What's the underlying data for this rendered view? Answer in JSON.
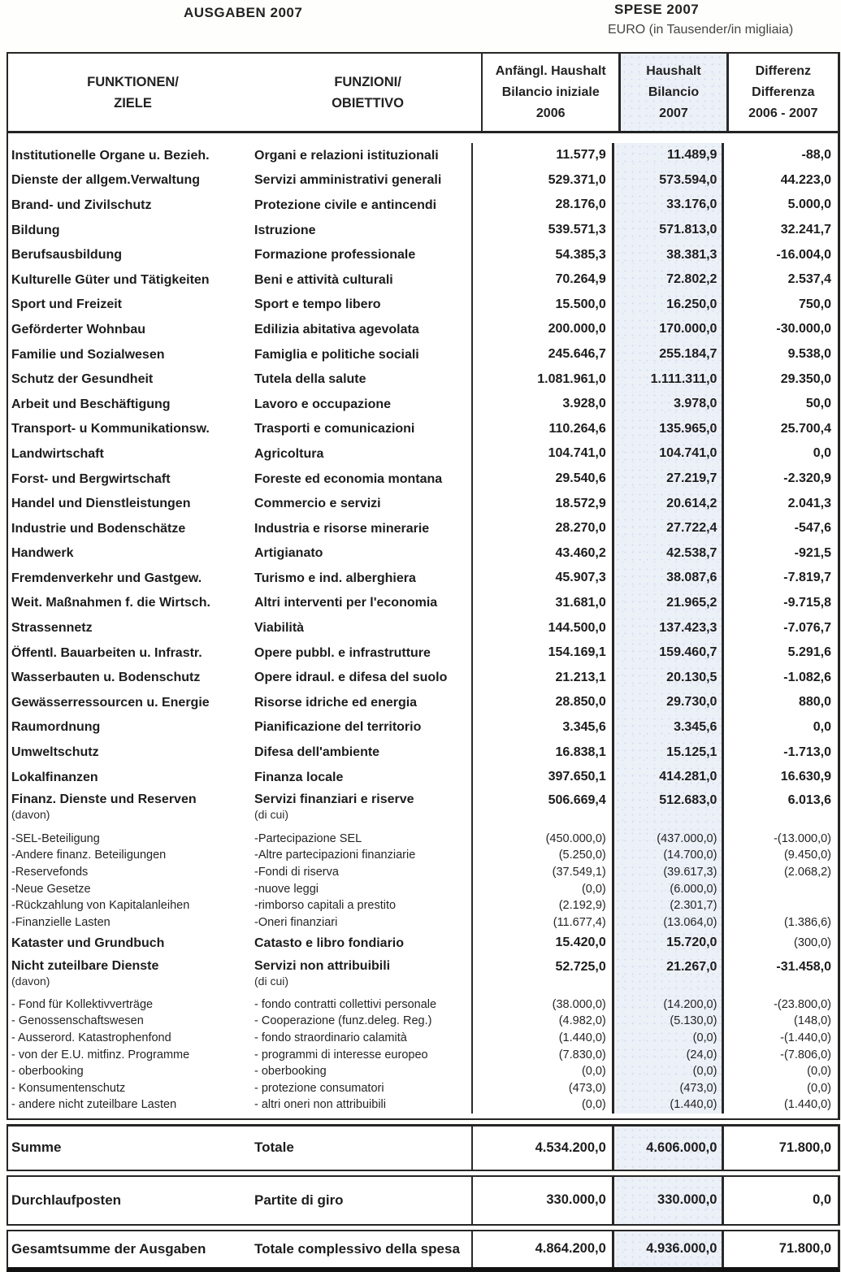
{
  "page": {
    "title_de": "AUSGABEN 2007",
    "title_it": "SPESE 2007",
    "unit_note": "EURO (in Tausender/in migliaia)"
  },
  "table": {
    "header": {
      "functions_de": [
        "FUNKTIONEN/",
        "ZIELE"
      ],
      "functions_it": [
        "FUNZIONI/",
        "OBIETTIVO"
      ],
      "col_2006": [
        "Anfängl. Haushalt",
        "Bilancio iniziale",
        "2006"
      ],
      "col_2007": [
        "Haushalt",
        "Bilancio",
        "2007"
      ],
      "col_diff": [
        "Differenz",
        "Differenza",
        "2006 - 2007"
      ]
    },
    "rows": [
      {
        "type": "main",
        "de": "Institutionelle Organe u. Bezieh.",
        "it": "Organi e relazioni istituzionali",
        "v2006": "11.577,9",
        "v2007": "11.489,9",
        "diff": "-88,0"
      },
      {
        "type": "main",
        "de": "Dienste der allgem.Verwaltung",
        "it": "Servizi amministrativi generali",
        "v2006": "529.371,0",
        "v2007": "573.594,0",
        "diff": "44.223,0"
      },
      {
        "type": "main",
        "de": "Brand- und Zivilschutz",
        "it": "Protezione civile e antincendi",
        "v2006": "28.176,0",
        "v2007": "33.176,0",
        "diff": "5.000,0"
      },
      {
        "type": "main",
        "de": "Bildung",
        "it": "Istruzione",
        "v2006": "539.571,3",
        "v2007": "571.813,0",
        "diff": "32.241,7"
      },
      {
        "type": "main",
        "de": "Berufsausbildung",
        "it": "Formazione professionale",
        "v2006": "54.385,3",
        "v2007": "38.381,3",
        "diff": "-16.004,0"
      },
      {
        "type": "main",
        "de": "Kulturelle Güter und Tätigkeiten",
        "it": "Beni e attività culturali",
        "v2006": "70.264,9",
        "v2007": "72.802,2",
        "diff": "2.537,4"
      },
      {
        "type": "main",
        "de": "Sport und Freizeit",
        "it": "Sport e tempo libero",
        "v2006": "15.500,0",
        "v2007": "16.250,0",
        "diff": "750,0"
      },
      {
        "type": "main",
        "de": "Geförderter Wohnbau",
        "it": "Edilizia abitativa agevolata",
        "v2006": "200.000,0",
        "v2007": "170.000,0",
        "diff": "-30.000,0"
      },
      {
        "type": "main",
        "de": "Familie und Sozialwesen",
        "it": "Famiglia e politiche sociali",
        "v2006": "245.646,7",
        "v2007": "255.184,7",
        "diff": "9.538,0"
      },
      {
        "type": "main",
        "de": "Schutz der Gesundheit",
        "it": "Tutela della salute",
        "v2006": "1.081.961,0",
        "v2007": "1.111.311,0",
        "diff": "29.350,0"
      },
      {
        "type": "main",
        "de": "Arbeit und Beschäftigung",
        "it": "Lavoro e occupazione",
        "v2006": "3.928,0",
        "v2007": "3.978,0",
        "diff": "50,0"
      },
      {
        "type": "main",
        "de": "Transport- u Kommunikationsw.",
        "it": "Trasporti e comunicazioni",
        "v2006": "110.264,6",
        "v2007": "135.965,0",
        "diff": "25.700,4"
      },
      {
        "type": "main",
        "de": "Landwirtschaft",
        "it": "Agricoltura",
        "v2006": "104.741,0",
        "v2007": "104.741,0",
        "diff": "0,0"
      },
      {
        "type": "main",
        "de": "Forst- und Bergwirtschaft",
        "it": "Foreste ed economia montana",
        "v2006": "29.540,6",
        "v2007": "27.219,7",
        "diff": "-2.320,9"
      },
      {
        "type": "main",
        "de": "Handel und Dienstleistungen",
        "it": "Commercio e servizi",
        "v2006": "18.572,9",
        "v2007": "20.614,2",
        "diff": "2.041,3"
      },
      {
        "type": "main",
        "de": "Industrie und Bodenschätze",
        "it": "Industria e risorse minerarie",
        "v2006": "28.270,0",
        "v2007": "27.722,4",
        "diff": "-547,6"
      },
      {
        "type": "main",
        "de": "Handwerk",
        "it": "Artigianato",
        "v2006": "43.460,2",
        "v2007": "42.538,7",
        "diff": "-921,5"
      },
      {
        "type": "main",
        "de": "Fremdenverkehr und Gastgew.",
        "it": "Turismo e ind. alberghiera",
        "v2006": "45.907,3",
        "v2007": "38.087,6",
        "diff": "-7.819,7"
      },
      {
        "type": "main",
        "de": "Weit. Maßnahmen f. die Wirtsch.",
        "it": "Altri interventi per l'economia",
        "v2006": "31.681,0",
        "v2007": "21.965,2",
        "diff": "-9.715,8"
      },
      {
        "type": "main",
        "de": "Strassennetz",
        "it": "Viabilità",
        "v2006": "144.500,0",
        "v2007": "137.423,3",
        "diff": "-7.076,7"
      },
      {
        "type": "main",
        "de": "Öffentl. Bauarbeiten u. Infrastr.",
        "it": "Opere pubbl. e infrastrutture",
        "v2006": "154.169,1",
        "v2007": "159.460,7",
        "diff": "5.291,6"
      },
      {
        "type": "main",
        "de": "Wasserbauten u. Bodenschutz",
        "it": "Opere idraul. e difesa del suolo",
        "v2006": "21.213,1",
        "v2007": "20.130,5",
        "diff": "-1.082,6"
      },
      {
        "type": "main",
        "de": "Gewässerressourcen u. Energie",
        "it": "Risorse idriche ed energia",
        "v2006": "28.850,0",
        "v2007": "29.730,0",
        "diff": "880,0"
      },
      {
        "type": "main",
        "de": "Raumordnung",
        "it": "Pianificazione del territorio",
        "v2006": "3.345,6",
        "v2007": "3.345,6",
        "diff": "0,0"
      },
      {
        "type": "main",
        "de": "Umweltschutz",
        "it": "Difesa dell'ambiente",
        "v2006": "16.838,1",
        "v2007": "15.125,1",
        "diff": "-1.713,0"
      },
      {
        "type": "main",
        "de": "Lokalfinanzen",
        "it": "Finanza locale",
        "v2006": "397.650,1",
        "v2007": "414.281,0",
        "diff": "16.630,9"
      },
      {
        "type": "main",
        "de": "Finanz. Dienste und Reserven",
        "de_note": "(davon)",
        "it": "Servizi finanziari e riserve",
        "it_note": "(di cui)",
        "v2006": "506.669,4",
        "v2007": "512.683,0",
        "diff": "6.013,6"
      },
      {
        "type": "sub",
        "de": "-SEL-Beteiligung",
        "it": "-Partecipazione SEL",
        "v2006": "(450.000,0)",
        "v2007": "(437.000,0)",
        "diff": "-(13.000,0)"
      },
      {
        "type": "sub",
        "de": "-Andere finanz. Beteiligungen",
        "it": "-Altre partecipazioni finanziarie",
        "v2006": "(5.250,0)",
        "v2007": "(14.700,0)",
        "diff": "(9.450,0)"
      },
      {
        "type": "sub",
        "de": "-Reservefonds",
        "it": "-Fondi di riserva",
        "v2006": "(37.549,1)",
        "v2007": "(39.617,3)",
        "diff": "(2.068,2)"
      },
      {
        "type": "sub",
        "de": "-Neue Gesetze",
        "it": "-nuove leggi",
        "v2006": "(0,0)",
        "v2007": "(6.000,0)",
        "diff": ""
      },
      {
        "type": "sub",
        "de": "-Rückzahlung von Kapitalanleihen",
        "it": "-rimborso capitali a prestito",
        "v2006": "(2.192,9)",
        "v2007": "(2.301,7)",
        "diff": ""
      },
      {
        "type": "sub",
        "de": "-Finanzielle Lasten",
        "it": "-Oneri finanziari",
        "v2006": "(11.677,4)",
        "v2007": "(13.064,0)",
        "diff": "(1.386,6)"
      },
      {
        "type": "main",
        "de": "Kataster und Grundbuch",
        "it": "Catasto e libro fondiario",
        "v2006": "15.420,0",
        "v2007": "15.720,0",
        "diff": "(300,0)",
        "diff_light": true
      },
      {
        "type": "main",
        "de": "Nicht zuteilbare Dienste",
        "de_note": "(davon)",
        "it": "Servizi non attribuibili",
        "it_note": "(di cui)",
        "v2006": "52.725,0",
        "v2007": "21.267,0",
        "diff": "-31.458,0"
      },
      {
        "type": "sub",
        "de": "- Fond für Kollektivverträge",
        "it": "- fondo contratti collettivi personale",
        "v2006": "(38.000,0)",
        "v2007": "(14.200,0)",
        "diff": "-(23.800,0)"
      },
      {
        "type": "sub",
        "de": "- Genossenschaftswesen",
        "it": "- Cooperazione (funz.deleg. Reg.)",
        "v2006": "(4.982,0)",
        "v2007": "(5.130,0)",
        "diff": "(148,0)"
      },
      {
        "type": "sub",
        "de": "- Ausserord. Katastrophenfond",
        "it": "- fondo straordinario calamità",
        "v2006": "(1.440,0)",
        "v2007": "(0,0)",
        "diff": "-(1.440,0)"
      },
      {
        "type": "sub",
        "de": "- von der E.U. mitfinz. Programme",
        "it": "- programmi di interesse europeo",
        "v2006": "(7.830,0)",
        "v2007": "(24,0)",
        "diff": "-(7.806,0)"
      },
      {
        "type": "sub",
        "de": "- oberbooking",
        "it": "- oberbooking",
        "v2006": "(0,0)",
        "v2007": "(0,0)",
        "diff": "(0,0)"
      },
      {
        "type": "sub",
        "de": "- Konsumentenschutz",
        "it": "- protezione consumatori",
        "v2006": "(473,0)",
        "v2007": "(473,0)",
        "diff": "(0,0)"
      },
      {
        "type": "sub",
        "de": "- andere nicht zuteilbare Lasten",
        "it": "- altri oneri non attribuibili",
        "v2006": "(0,0)",
        "v2007": "(1.440,0)",
        "diff": "(1.440,0)"
      }
    ],
    "totals": [
      {
        "de": "Summe",
        "it": "Totale",
        "v2006": "4.534.200,0",
        "v2007": "4.606.000,0",
        "diff": "71.800,0"
      },
      {
        "de": "Durchlaufposten",
        "it": "Partite di giro",
        "v2006": "330.000,0",
        "v2007": "330.000,0",
        "diff": "0,0"
      },
      {
        "de": "Gesamtsumme der Ausgaben",
        "it": "Totale complessivo della spesa",
        "v2006": "4.864.200,0",
        "v2007": "4.936.000,0",
        "diff": "71.800,0"
      }
    ]
  },
  "colors": {
    "shaded_column_bg": "#ecf0f7",
    "border": "#262626",
    "text": "#1d1d1d"
  }
}
